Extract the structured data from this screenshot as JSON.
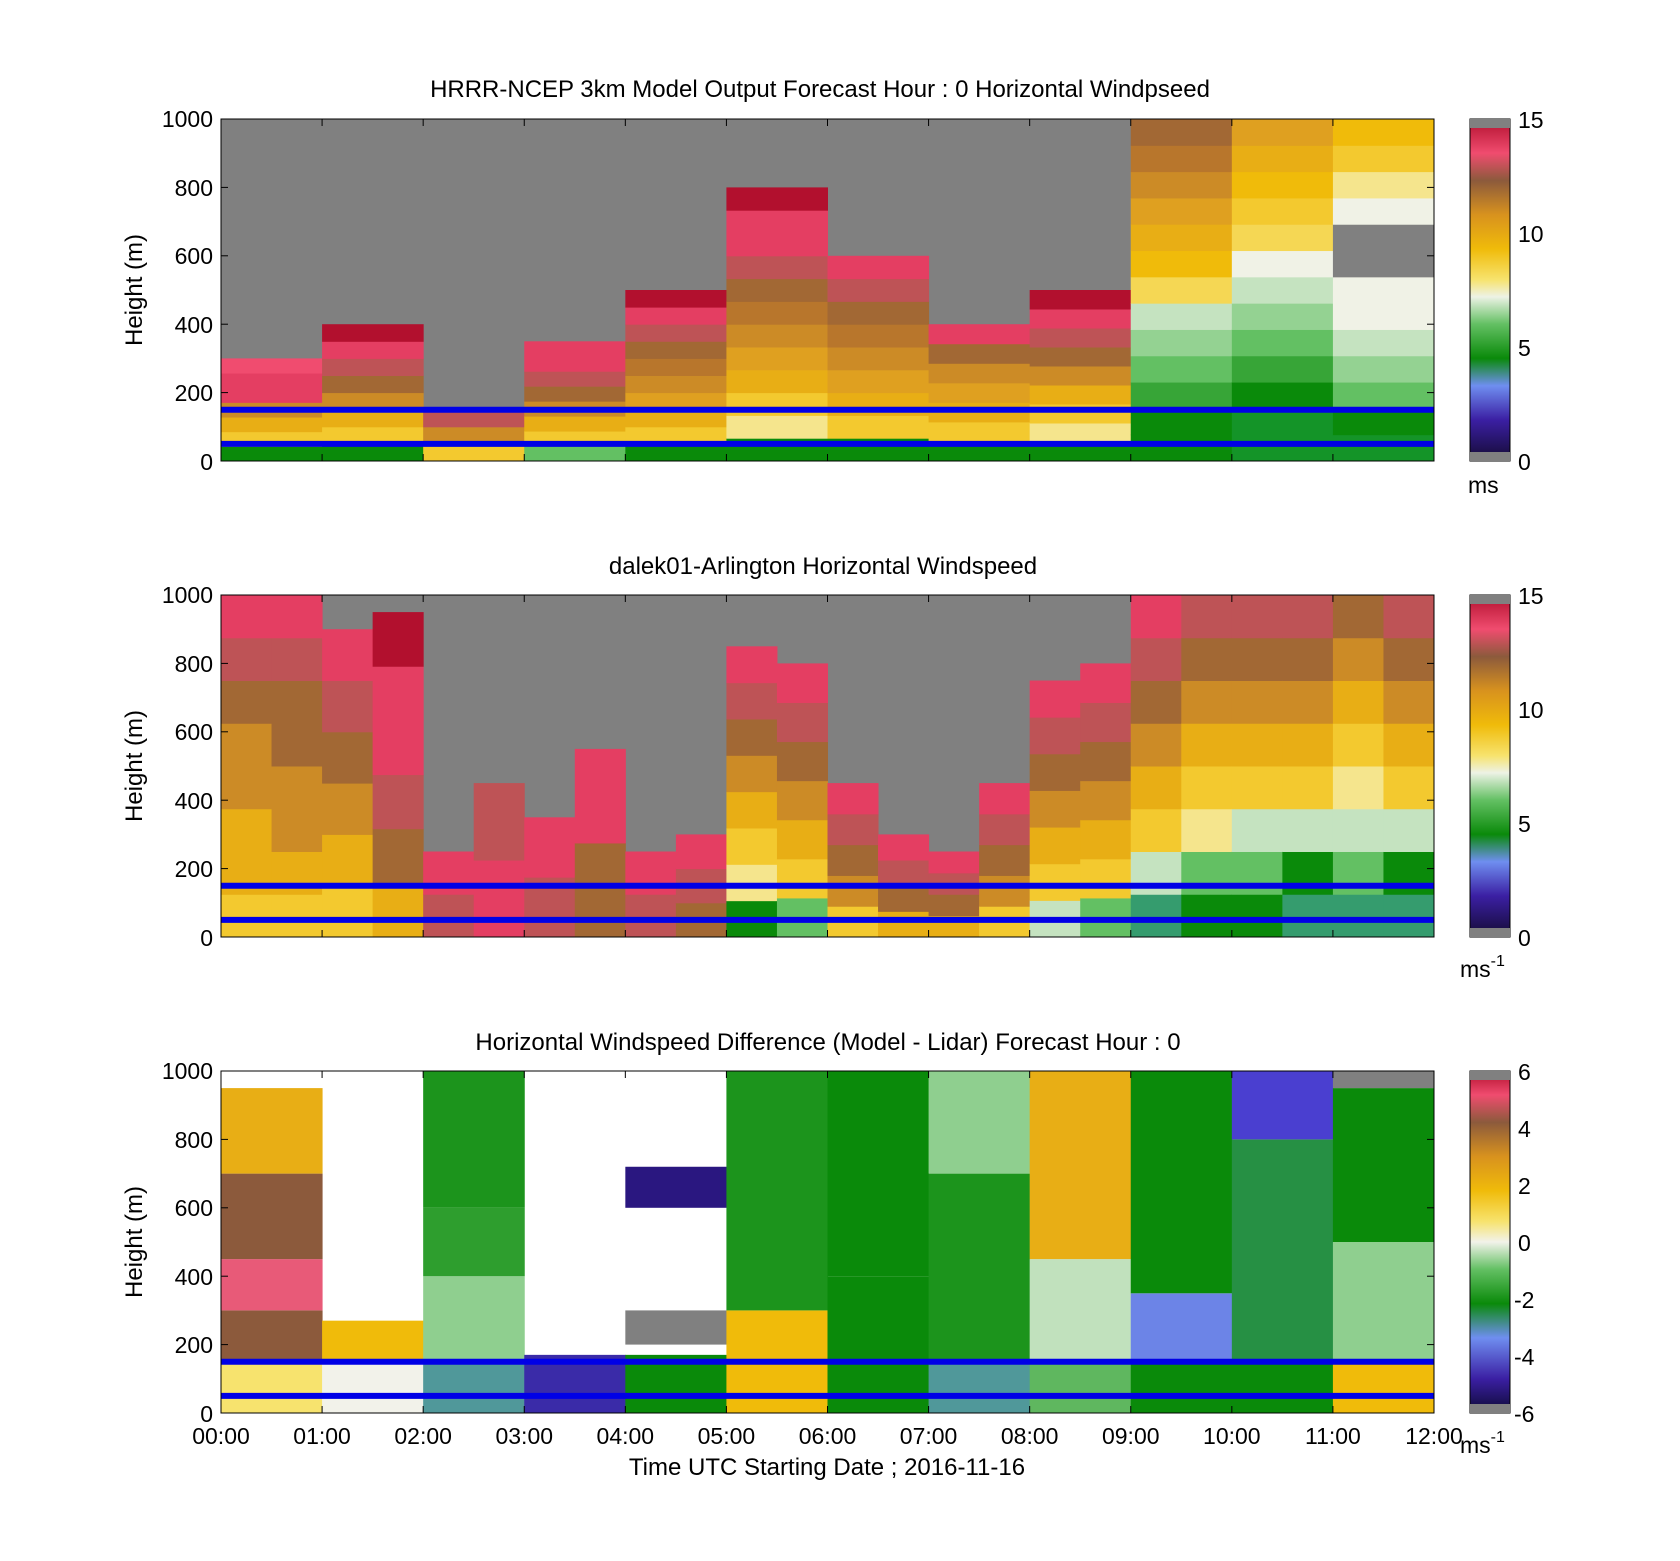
{
  "figure": {
    "xlabel": "Time UTC  Starting Date ; 2016-11-16",
    "x_ticks": [
      "00:00",
      "01:00",
      "02:00",
      "03:00",
      "04:00",
      "05:00",
      "06:00",
      "07:00",
      "08:00",
      "09:00",
      "10:00",
      "11:00",
      "12:00"
    ],
    "ylabel": "Height (m)",
    "y_ticks": [
      "0",
      "200",
      "400",
      "600",
      "800",
      "1000"
    ],
    "reference_heights_m": [
      150,
      50
    ],
    "reference_line_color": "#0000e6"
  },
  "chart_data": [
    {
      "type": "heatmap",
      "title": "HRRR-NCEP 3km Model Output   Forecast Hour : 0 Horizontal Windpseed",
      "colorbar": {
        "ticks": [
          "0",
          "5",
          "10",
          "15"
        ],
        "unit": "ms",
        "unit_sup": "",
        "range": [
          0,
          15
        ]
      },
      "ylim": [
        0,
        1000
      ],
      "xlim_hours": [
        0,
        12
      ],
      "no_data_color": "#808080",
      "columns": [
        {
          "hour": 0,
          "top_m": 300,
          "profile_ms": [
            5,
            9,
            10,
            11,
            14,
            14,
            13.5
          ]
        },
        {
          "hour": 1,
          "top_m": 400,
          "profile_ms": [
            5,
            9,
            10,
            11,
            12,
            13,
            14,
            15
          ]
        },
        {
          "hour": 2,
          "top_m": 150,
          "profile_ms": [
            9,
            11,
            13
          ]
        },
        {
          "hour": 3,
          "top_m": 350,
          "profile_ms": [
            6,
            9,
            10,
            11,
            12,
            13,
            14,
            14
          ]
        },
        {
          "hour": 4,
          "top_m": 500,
          "profile_ms": [
            5,
            9,
            10,
            10.5,
            11,
            11.5,
            12,
            13,
            14,
            15
          ]
        },
        {
          "hour": 5,
          "top_m": 800,
          "profile_ms": [
            5,
            8,
            9,
            10,
            10.5,
            11,
            11.5,
            12,
            13,
            14,
            14,
            15
          ]
        },
        {
          "hour": 6,
          "top_m": 600,
          "profile_ms": [
            5,
            9,
            10,
            10.5,
            11,
            11.5,
            12,
            13,
            14
          ]
        },
        {
          "hour": 7,
          "top_m": 400,
          "profile_ms": [
            5,
            9,
            10,
            10.5,
            11,
            12,
            14
          ]
        },
        {
          "hour": 8,
          "top_m": 500,
          "profile_ms": [
            5,
            8,
            9,
            10,
            11,
            12,
            13,
            14,
            15
          ]
        },
        {
          "hour": 9,
          "top_m": 1000,
          "profile_ms": [
            5,
            5,
            5.5,
            6,
            6.5,
            7,
            8.5,
            9.5,
            10,
            10.5,
            11,
            11.5,
            12
          ]
        },
        {
          "hour": 10,
          "top_m": 1000,
          "profile_ms": [
            4.5,
            4.5,
            5,
            5.5,
            6,
            6.5,
            7,
            7.5,
            8.5,
            9,
            9.5,
            10,
            10.5
          ]
        },
        {
          "hour": 11,
          "top_m": 1000,
          "profile_ms": [
            4.5,
            5,
            6,
            6.5,
            7,
            7.5,
            7.5,
            0,
            0,
            7.5,
            8,
            9,
            9.5
          ]
        }
      ]
    },
    {
      "type": "heatmap",
      "title": "dalek01-Arlington  Horizontal Windspeed",
      "colorbar": {
        "ticks": [
          "0",
          "5",
          "10",
          "15"
        ],
        "unit": "ms",
        "unit_sup": "-1",
        "range": [
          0,
          15
        ]
      },
      "ylim": [
        0,
        1000
      ],
      "xlim_hours": [
        0,
        12
      ],
      "no_data_color": "#808080",
      "columns": [
        {
          "hour": 0.0,
          "top_m": 1000,
          "profile_ms": [
            9,
            10,
            10,
            11,
            11,
            12,
            13,
            14
          ]
        },
        {
          "hour": 0.5,
          "top_m": 1000,
          "profile_ms": [
            9,
            10,
            11,
            11,
            12,
            12,
            13,
            14
          ]
        },
        {
          "hour": 1.0,
          "top_m": 900,
          "profile_ms": [
            9,
            10,
            11,
            12,
            13,
            14
          ]
        },
        {
          "hour": 1.5,
          "top_m": 950,
          "profile_ms": [
            10,
            12,
            13,
            14,
            14,
            15
          ]
        },
        {
          "hour": 2.0,
          "top_m": 250,
          "profile_ms": [
            13,
            14
          ]
        },
        {
          "hour": 2.5,
          "top_m": 450,
          "profile_ms": [
            14,
            13
          ]
        },
        {
          "hour": 3.0,
          "top_m": 350,
          "profile_ms": [
            13,
            14
          ]
        },
        {
          "hour": 3.5,
          "top_m": 550,
          "profile_ms": [
            12,
            14
          ]
        },
        {
          "hour": 4.0,
          "top_m": 250,
          "profile_ms": [
            13,
            14
          ]
        },
        {
          "hour": 4.5,
          "top_m": 300,
          "profile_ms": [
            12,
            13,
            14
          ]
        },
        {
          "hour": 5.0,
          "top_m": 850,
          "profile_ms": [
            5,
            8,
            9,
            10,
            11,
            12,
            13,
            14
          ]
        },
        {
          "hour": 5.5,
          "top_m": 800,
          "profile_ms": [
            6,
            9,
            10,
            11,
            12,
            13,
            14
          ]
        },
        {
          "hour": 6.0,
          "top_m": 450,
          "profile_ms": [
            9,
            11,
            12,
            13,
            14
          ]
        },
        {
          "hour": 6.5,
          "top_m": 300,
          "profile_ms": [
            10,
            12,
            13,
            14
          ]
        },
        {
          "hour": 7.0,
          "top_m": 250,
          "profile_ms": [
            10,
            12,
            13,
            14
          ]
        },
        {
          "hour": 7.5,
          "top_m": 450,
          "profile_ms": [
            9,
            11,
            12,
            13,
            14
          ]
        },
        {
          "hour": 8.0,
          "top_m": 750,
          "profile_ms": [
            7,
            9,
            10,
            11,
            12,
            13,
            14
          ]
        },
        {
          "hour": 8.5,
          "top_m": 800,
          "profile_ms": [
            6,
            9,
            10,
            11,
            12,
            13,
            14
          ]
        },
        {
          "hour": 9.0,
          "top_m": 1000,
          "profile_ms": [
            4,
            7,
            9,
            10,
            11,
            12,
            13,
            14
          ]
        },
        {
          "hour": 9.5,
          "top_m": 1000,
          "profile_ms": [
            5,
            6,
            8,
            9,
            10,
            11,
            12,
            13
          ]
        },
        {
          "hour": 10.0,
          "top_m": 1000,
          "profile_ms": [
            5,
            6,
            7,
            9,
            10,
            11,
            12,
            13
          ]
        },
        {
          "hour": 10.5,
          "top_m": 1000,
          "profile_ms": [
            4,
            5,
            7,
            9,
            10,
            11,
            12,
            13
          ]
        },
        {
          "hour": 11.0,
          "top_m": 1000,
          "profile_ms": [
            4,
            6,
            7,
            8,
            9,
            10,
            11,
            12
          ]
        },
        {
          "hour": 11.5,
          "top_m": 1000,
          "profile_ms": [
            4,
            5,
            7,
            9,
            10,
            11,
            12,
            13
          ]
        }
      ]
    },
    {
      "type": "heatmap",
      "title": "Horizontal Windspeed Difference (Model - Lidar) Forecast Hour : 0",
      "colorbar": {
        "ticks": [
          "6",
          "4",
          "2",
          "0",
          "-2",
          "-4",
          "-6"
        ],
        "unit": "ms",
        "unit_sup": "-1",
        "range": [
          -6,
          6
        ]
      },
      "ylim": [
        0,
        1000
      ],
      "xlim_hours": [
        0,
        12
      ],
      "no_data_color": "#ffffff",
      "columns": [
        {
          "hour": 0,
          "segments": [
            [
              0,
              150,
              0.5
            ],
            [
              150,
              300,
              3
            ],
            [
              300,
              450,
              4
            ],
            [
              450,
              700,
              3
            ],
            [
              700,
              950,
              1.5
            ]
          ]
        },
        {
          "hour": 1,
          "segments": [
            [
              0,
              150,
              0
            ],
            [
              150,
              270,
              1
            ]
          ]
        },
        {
          "hour": 2,
          "segments": [
            [
              0,
              150,
              -3.5
            ],
            [
              150,
              400,
              -1
            ],
            [
              400,
              600,
              -2
            ],
            [
              600,
              1000,
              -2.5
            ]
          ]
        },
        {
          "hour": 3,
          "segments": [
            [
              0,
              170,
              -5
            ]
          ]
        },
        {
          "hour": 4,
          "segments": [
            [
              0,
              170,
              -3
            ],
            [
              200,
              300,
              -7
            ],
            [
              600,
              720,
              -5.5
            ]
          ]
        },
        {
          "hour": 5,
          "segments": [
            [
              0,
              300,
              1
            ],
            [
              300,
              1000,
              -2.5
            ]
          ]
        },
        {
          "hour": 6,
          "segments": [
            [
              0,
              400,
              -3
            ],
            [
              400,
              1000,
              -3
            ]
          ]
        },
        {
          "hour": 7,
          "segments": [
            [
              0,
              150,
              -3.5
            ],
            [
              150,
              700,
              -2.5
            ],
            [
              700,
              1000,
              -1
            ]
          ]
        },
        {
          "hour": 8,
          "segments": [
            [
              0,
              150,
              -1.5
            ],
            [
              150,
              450,
              -0.5
            ],
            [
              450,
              1000,
              1.5
            ]
          ]
        },
        {
          "hour": 9,
          "segments": [
            [
              0,
              150,
              -3
            ],
            [
              150,
              350,
              -4
            ],
            [
              350,
              1000,
              -3
            ]
          ]
        },
        {
          "hour": 10,
          "segments": [
            [
              0,
              150,
              -3
            ],
            [
              150,
              800,
              -3.2
            ],
            [
              800,
              1000,
              -4.5
            ]
          ]
        },
        {
          "hour": 11,
          "segments": [
            [
              0,
              150,
              1
            ],
            [
              150,
              500,
              -1
            ],
            [
              500,
              950,
              -3
            ],
            [
              950,
              1000,
              -7
            ]
          ]
        }
      ]
    }
  ]
}
